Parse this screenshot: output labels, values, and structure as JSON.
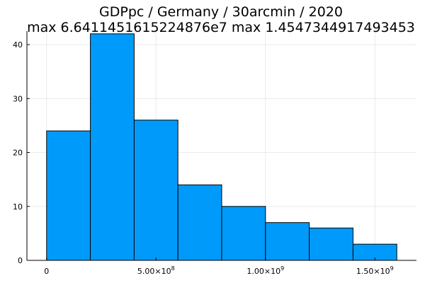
{
  "chart_data": {
    "type": "bar",
    "title": "GDPpc / Germany / 30arcmin / 2020",
    "subtitle": "max 6.6411451615224876e7  max 1.4547344917493453",
    "bins": [
      {
        "x0": 0,
        "x1": 200000000,
        "count": 24
      },
      {
        "x0": 200000000,
        "x1": 400000000,
        "count": 42
      },
      {
        "x0": 400000000,
        "x1": 600000000,
        "count": 26
      },
      {
        "x0": 600000000,
        "x1": 800000000,
        "count": 14
      },
      {
        "x0": 800000000,
        "x1": 1000000000,
        "count": 10
      },
      {
        "x0": 1000000000,
        "x1": 1200000000,
        "count": 7
      },
      {
        "x0": 1200000000,
        "x1": 1400000000,
        "count": 6
      },
      {
        "x0": 1400000000,
        "x1": 1600000000,
        "count": 3
      }
    ],
    "xlim": [
      -90000000,
      1690000000
    ],
    "ylim": [
      0,
      42.5
    ],
    "xticks": [
      {
        "value": 0,
        "label": "0"
      },
      {
        "value": 500000000,
        "label": "5.00×10",
        "exp": "8"
      },
      {
        "value": 1000000000,
        "label": "1.00×10",
        "exp": "9"
      },
      {
        "value": 1500000000,
        "label": "1.50×10",
        "exp": "9"
      }
    ],
    "yticks": [
      {
        "value": 0,
        "label": "0"
      },
      {
        "value": 10,
        "label": "10"
      },
      {
        "value": 20,
        "label": "20"
      },
      {
        "value": 30,
        "label": "30"
      },
      {
        "value": 40,
        "label": "40"
      }
    ],
    "grid": true,
    "legend": false,
    "bar_color": "#009AFA"
  }
}
